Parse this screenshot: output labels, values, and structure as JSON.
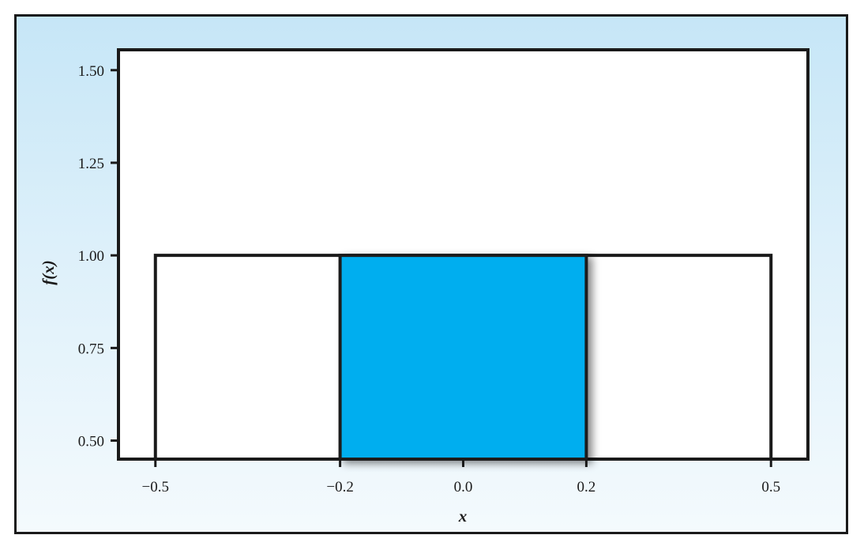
{
  "chart_data": {
    "type": "area",
    "title": "",
    "xlabel": "x",
    "ylabel": "f(x)",
    "xlim": [
      -0.56,
      0.56
    ],
    "ylim": [
      0.45,
      1.555
    ],
    "xticks": [
      -0.5,
      -0.2,
      0.0,
      0.2,
      0.5
    ],
    "xtick_labels": [
      "−0.5",
      "−0.2",
      "0.0",
      "0.2",
      "0.5"
    ],
    "yticks": [
      0.5,
      0.75,
      1.0,
      1.25,
      1.5
    ],
    "ytick_labels": [
      "0.50",
      "0.75",
      "1.00",
      "1.25",
      "1.50"
    ],
    "grid": false,
    "series": [
      {
        "values": [
          [
            -0.5,
            1.0
          ],
          [
            0.5,
            1.0
          ]
        ],
        "style": "outline"
      }
    ],
    "shaded_region": {
      "x_from": -0.2,
      "x_to": 0.2,
      "height": 1.0,
      "color": "#00aeef"
    },
    "colors": {
      "line": "#1a1a1a",
      "fill": "#00aeef",
      "background_top": "#c6e6f7",
      "background_bottom": "#f4fafd"
    }
  }
}
